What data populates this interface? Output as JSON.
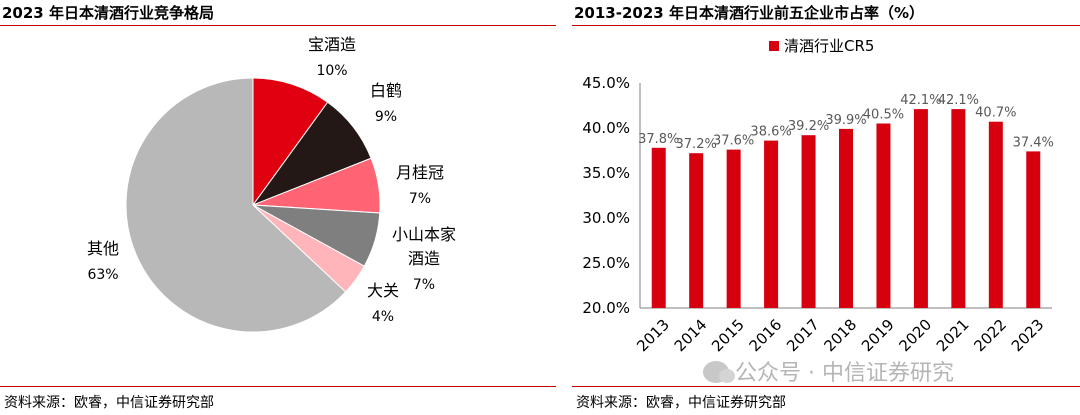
{
  "left_panel": {
    "title": "2023 年日本清酒行业竞争格局",
    "source": "资料来源：欧睿，中信证券研究部"
  },
  "right_panel": {
    "title": "2013-2023 年日本清酒行业前五企业市占率（%）",
    "source": "资料来源：欧睿，中信证券研究部"
  },
  "watermark": "公众号 · 中信证券研究",
  "chart_data": [
    {
      "type": "pie",
      "title": "2023 年日本清酒行业竞争格局",
      "slices": [
        {
          "name": "宝酒造",
          "value": 10,
          "label": "10%",
          "color": "#e00010"
        },
        {
          "name": "白鹤",
          "value": 9,
          "label": "9%",
          "color": "#231816"
        },
        {
          "name": "月桂冠",
          "value": 7,
          "label": "7%",
          "color": "#ff6474"
        },
        {
          "name_lines": [
            "小山本家",
            "酒造"
          ],
          "name": "小山本家酒造",
          "value": 7,
          "label": "7%",
          "color": "#7f7f7f"
        },
        {
          "name": "大关",
          "value": 4,
          "label": "4%",
          "color": "#ffb5b9"
        },
        {
          "name": "其他",
          "value": 63,
          "label": "63%",
          "color": "#b8b8b8"
        }
      ]
    },
    {
      "type": "bar",
      "title": "2013-2023 年日本清酒行业前五企业市占率（%）",
      "legend": "清酒行业CR5",
      "legend_position": "top",
      "series_color": "#d7000f",
      "categories": [
        "2013",
        "2014",
        "2015",
        "2016",
        "2017",
        "2018",
        "2019",
        "2020",
        "2021",
        "2022",
        "2023"
      ],
      "values": [
        37.8,
        37.2,
        37.6,
        38.6,
        39.2,
        39.9,
        40.5,
        42.1,
        42.1,
        40.7,
        37.4
      ],
      "data_labels": [
        "37.8%",
        "37.2%",
        "37.6%",
        "38.6%",
        "39.2%",
        "39.9%",
        "40.5%",
        "42.1%",
        "42.1%",
        "40.7%",
        "37.4%"
      ],
      "ylim": [
        20,
        45
      ],
      "yticks": [
        20,
        25,
        30,
        35,
        40,
        45
      ],
      "ytick_labels": [
        "20.0%",
        "25.0%",
        "30.0%",
        "35.0%",
        "40.0%",
        "45.0%"
      ],
      "xlabel": "",
      "ylabel": ""
    }
  ]
}
